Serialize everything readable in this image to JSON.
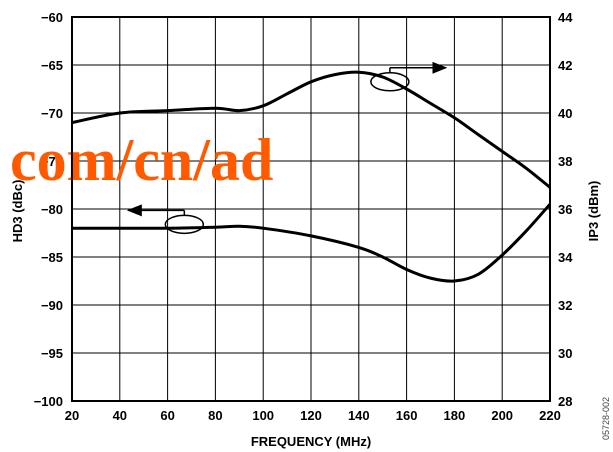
{
  "chart_data": {
    "type": "line",
    "title": "",
    "xlabel": "FREQUENCY (MHz)",
    "ylabel": "HD3 (dBc)",
    "y2label": "IP3 (dBm)",
    "xlim": [
      20,
      220
    ],
    "ylim": [
      -100,
      -60
    ],
    "y2lim": [
      28,
      44
    ],
    "x_ticks": [
      "20",
      "40",
      "60",
      "80",
      "100",
      "120",
      "140",
      "160",
      "180",
      "200",
      "220"
    ],
    "y_ticks": [
      "−60",
      "−65",
      "−70",
      "−75",
      "−80",
      "−85",
      "−90",
      "−95",
      "−100"
    ],
    "y2_ticks": [
      "44",
      "42",
      "40",
      "38",
      "36",
      "34",
      "32",
      "30",
      "28"
    ],
    "grid": true,
    "series": [
      {
        "axis": "right",
        "x": [
          20,
          40,
          60,
          80,
          90,
          100,
          110,
          120,
          130,
          140,
          150,
          160,
          170,
          180,
          190,
          200,
          210,
          220
        ],
        "y": [
          39.6,
          40.0,
          40.1,
          40.2,
          40.1,
          40.3,
          40.8,
          41.3,
          41.6,
          41.7,
          41.5,
          41.0,
          40.4,
          39.8,
          39.1,
          38.4,
          37.7,
          36.9
        ]
      },
      {
        "axis": "left",
        "x": [
          20,
          40,
          60,
          80,
          90,
          100,
          120,
          140,
          150,
          160,
          170,
          180,
          190,
          200,
          210,
          220
        ],
        "y": [
          -82.0,
          -82.0,
          -82.0,
          -81.9,
          -81.8,
          -82.0,
          -82.8,
          -84.0,
          -85.0,
          -86.3,
          -87.2,
          -87.5,
          -86.8,
          -84.8,
          -82.3,
          -79.5
        ]
      }
    ],
    "annotations": {
      "ip3_arrow": "points right to IP3 axis",
      "hd3_arrow": "points left to HD3 axis"
    }
  },
  "watermark_text": "com/cn/ad",
  "figure_id": "05728-002"
}
